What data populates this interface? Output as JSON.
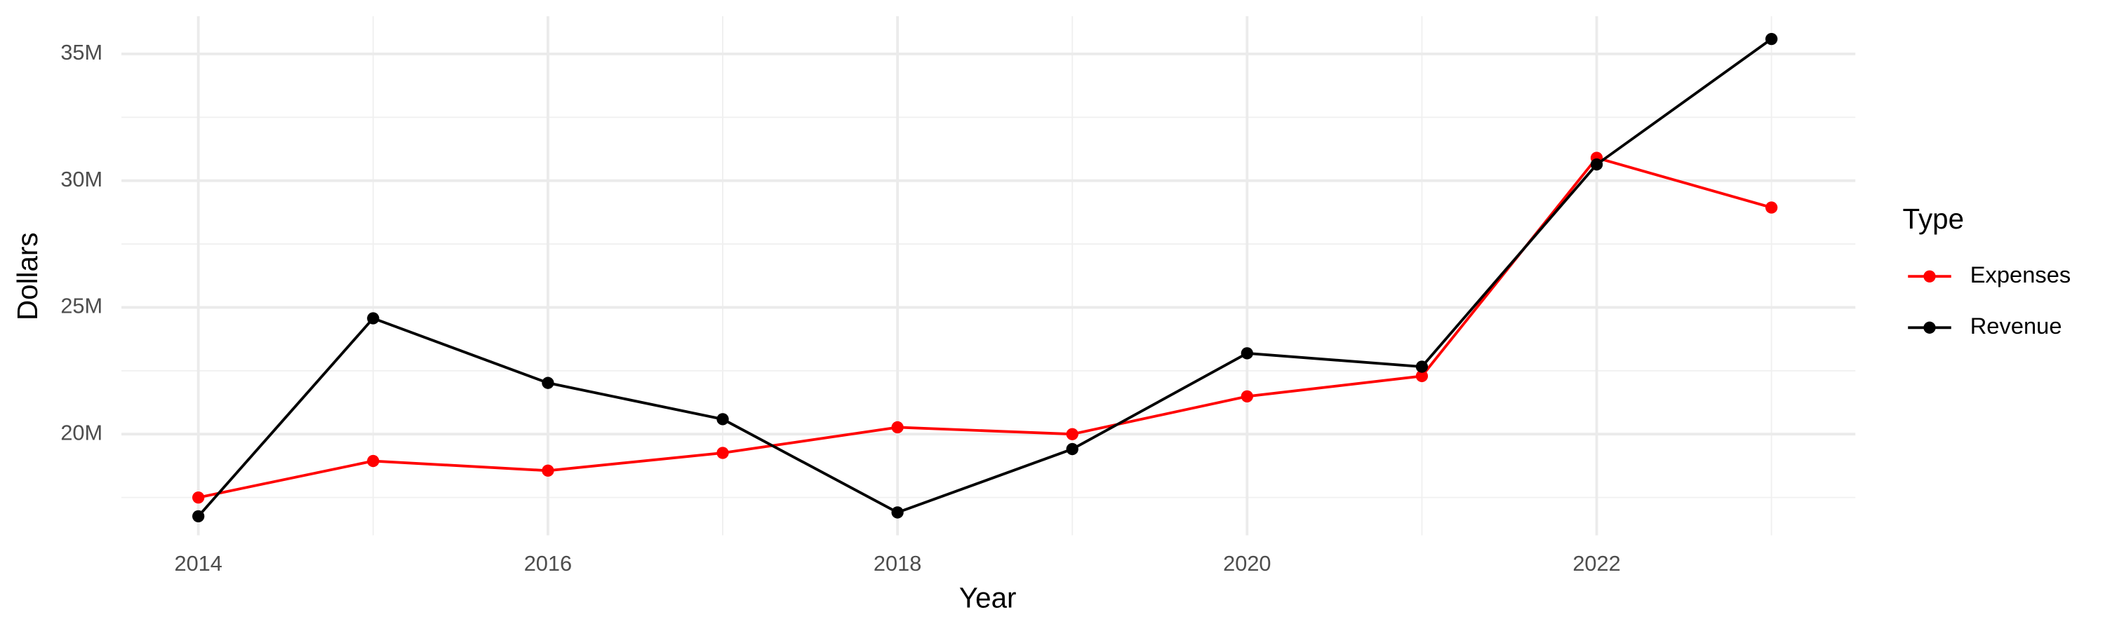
{
  "chart_data": {
    "type": "line",
    "x_label": "Year",
    "y_label": "Dollars",
    "legend_title": "Type",
    "legend_position": "right",
    "grid": true,
    "x": [
      2014,
      2015,
      2016,
      2017,
      2018,
      2019,
      2020,
      2021,
      2022,
      2023
    ],
    "series": [
      {
        "name": "Expenses",
        "color": "#ff0000",
        "values": [
          17500000,
          18940000,
          18560000,
          19260000,
          20270000,
          20000000,
          21490000,
          22290000,
          30900000,
          28940000
        ]
      },
      {
        "name": "Revenue",
        "color": "#000000",
        "values": [
          16760000,
          24570000,
          22020000,
          20590000,
          16910000,
          19410000,
          23190000,
          22660000,
          30640000,
          35590000
        ]
      }
    ],
    "xlim": [
      2013.56,
      2023.48
    ],
    "xticks": [
      2014,
      2016,
      2018,
      2020,
      2022
    ],
    "x_minor_ticks": [
      2015,
      2017,
      2019,
      2021,
      2023
    ],
    "ylim": [
      16010000,
      36490000
    ],
    "yticks": [
      {
        "value": 20000000,
        "label": "20M"
      },
      {
        "value": 25000000,
        "label": "25M"
      },
      {
        "value": 30000000,
        "label": "30M"
      },
      {
        "value": 35000000,
        "label": "35M"
      }
    ],
    "y_minor_ticks": [
      17500000,
      22500000,
      27500000,
      32500000
    ]
  }
}
